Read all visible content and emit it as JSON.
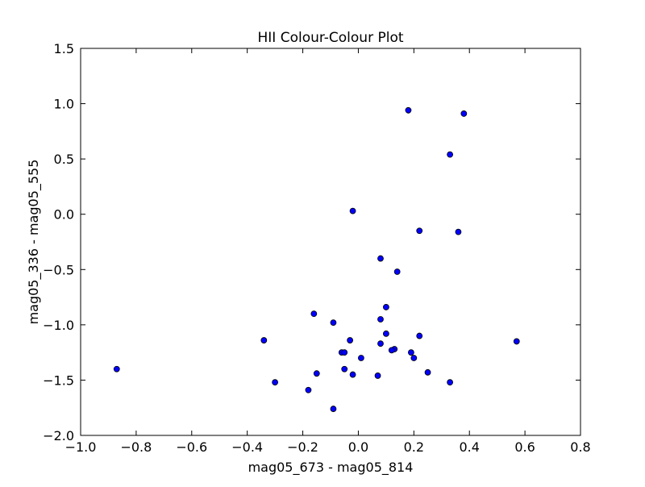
{
  "chart_data": {
    "type": "scatter",
    "title": "HII Colour-Colour Plot",
    "xlabel": "mag05_673 - mag05_814",
    "ylabel": "mag05_336 - mag05_555",
    "xlim": [
      -1.0,
      0.8
    ],
    "ylim": [
      -2.0,
      1.5
    ],
    "xticks": [
      -1.0,
      -0.8,
      -0.6,
      -0.4,
      -0.2,
      0.0,
      0.2,
      0.4,
      0.6,
      0.8
    ],
    "xtick_labels": [
      "−1.0",
      "−0.8",
      "−0.6",
      "−0.4",
      "−0.2",
      "0.0",
      "0.2",
      "0.4",
      "0.6",
      "0.8"
    ],
    "yticks": [
      1.5,
      1.0,
      0.5,
      0.0,
      -0.5,
      -1.0,
      -1.5,
      -2.0
    ],
    "ytick_labels": [
      "1.5",
      "1.0",
      "0.5",
      "0.0",
      "−0.5",
      "−1.0",
      "−1.5",
      "−2.0"
    ],
    "grid": false,
    "legend": null,
    "marker_color": "#0000ff",
    "marker_edge": "#000000",
    "points": [
      {
        "x": 0.18,
        "y": 0.94
      },
      {
        "x": 0.38,
        "y": 0.91
      },
      {
        "x": 0.33,
        "y": 0.54
      },
      {
        "x": -0.02,
        "y": 0.03
      },
      {
        "x": 0.22,
        "y": -0.15
      },
      {
        "x": 0.36,
        "y": -0.16
      },
      {
        "x": 0.08,
        "y": -0.4
      },
      {
        "x": 0.14,
        "y": -0.52
      },
      {
        "x": 0.1,
        "y": -0.84
      },
      {
        "x": -0.16,
        "y": -0.9
      },
      {
        "x": 0.08,
        "y": -0.95
      },
      {
        "x": -0.09,
        "y": -0.98
      },
      {
        "x": 0.1,
        "y": -1.08
      },
      {
        "x": 0.22,
        "y": -1.1
      },
      {
        "x": -0.34,
        "y": -1.14
      },
      {
        "x": -0.03,
        "y": -1.14
      },
      {
        "x": 0.57,
        "y": -1.15
      },
      {
        "x": 0.08,
        "y": -1.17
      },
      {
        "x": 0.13,
        "y": -1.22
      },
      {
        "x": 0.12,
        "y": -1.23
      },
      {
        "x": -0.06,
        "y": -1.25
      },
      {
        "x": -0.05,
        "y": -1.25
      },
      {
        "x": 0.19,
        "y": -1.25
      },
      {
        "x": 0.2,
        "y": -1.3
      },
      {
        "x": 0.01,
        "y": -1.3
      },
      {
        "x": -0.05,
        "y": -1.4
      },
      {
        "x": -0.87,
        "y": -1.4
      },
      {
        "x": 0.25,
        "y": -1.43
      },
      {
        "x": -0.15,
        "y": -1.44
      },
      {
        "x": -0.02,
        "y": -1.45
      },
      {
        "x": 0.07,
        "y": -1.46
      },
      {
        "x": -0.3,
        "y": -1.52
      },
      {
        "x": 0.33,
        "y": -1.52
      },
      {
        "x": -0.18,
        "y": -1.59
      },
      {
        "x": -0.09,
        "y": -1.76
      }
    ]
  }
}
